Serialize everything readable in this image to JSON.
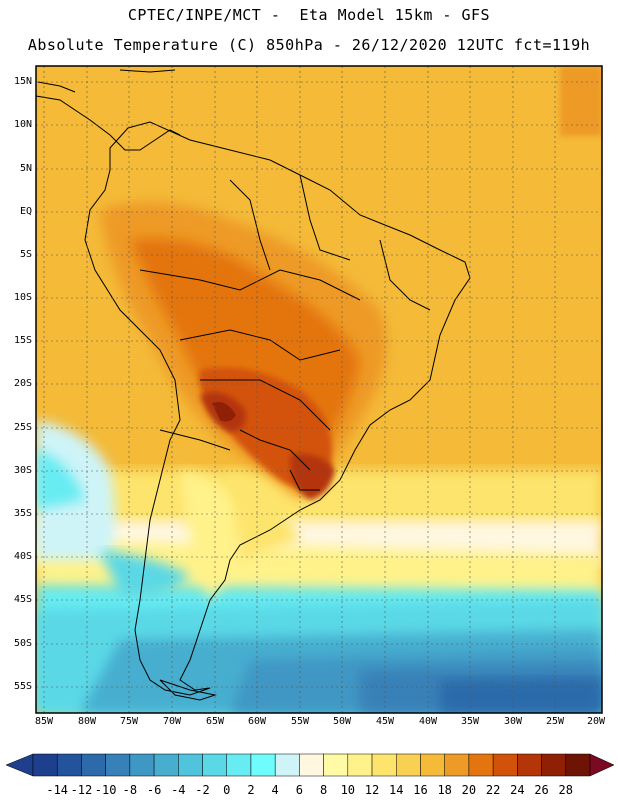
{
  "header": {
    "line1": "CPTEC/INPE/MCT -  Eta Model 15km - GFS",
    "line2": "Absolute Temperature (C) 850hPa - 26/12/2020 12UTC fct=119h"
  },
  "map": {
    "lat_labels": [
      "15N",
      "10N",
      "5N",
      "EQ",
      "5S",
      "10S",
      "15S",
      "20S",
      "25S",
      "30S",
      "35S",
      "40S",
      "45S",
      "50S",
      "55S"
    ],
    "lon_labels": [
      "85W",
      "80W",
      "75W",
      "70W",
      "65W",
      "60W",
      "55W",
      "50W",
      "45W",
      "40W",
      "35W",
      "30W",
      "25W",
      "20W"
    ]
  },
  "colorbar": {
    "labels": [
      "-14",
      "-12",
      "-10",
      "-8",
      "-6",
      "-4",
      "-2",
      "0",
      "2",
      "4",
      "6",
      "8",
      "10",
      "12",
      "14",
      "16",
      "18",
      "20",
      "22",
      "24",
      "26",
      "28"
    ],
    "colors": [
      "#1d3f8e",
      "#23539c",
      "#2c6aaa",
      "#3781b8",
      "#3f97c4",
      "#47aed0",
      "#4fc4dc",
      "#5ad8e6",
      "#66ecf2",
      "#6ffcfc",
      "#cef4f8",
      "#fff7e0",
      "#fffaa6",
      "#fff28a",
      "#fde46c",
      "#f8d052",
      "#f4ba38",
      "#ee9a26",
      "#e47410",
      "#d3520a",
      "#b43608",
      "#8f2006",
      "#6e1404"
    ],
    "low_arrow_color": "#1d3f8e",
    "high_arrow_color": "#7a0a22"
  }
}
